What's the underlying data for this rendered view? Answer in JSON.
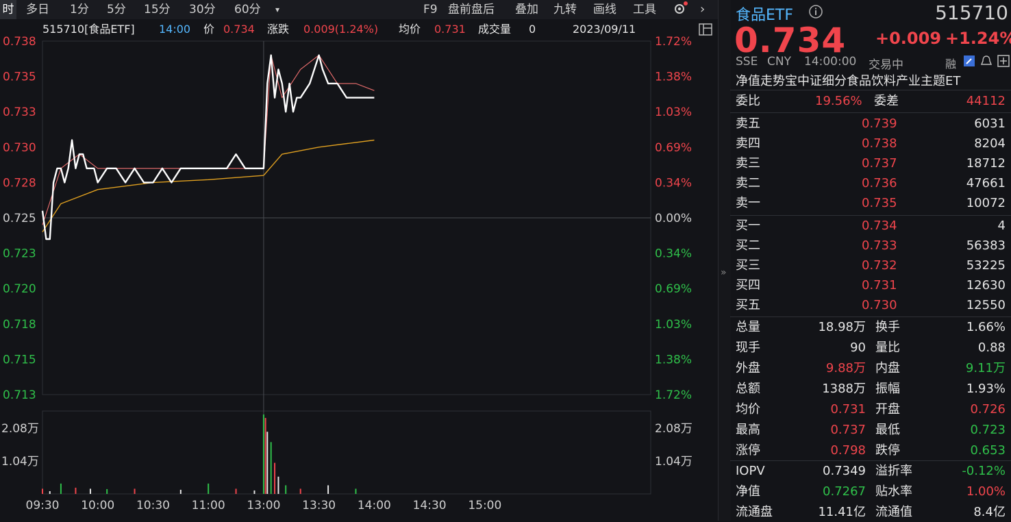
{
  "toolbar": {
    "left_items": [
      "时",
      "多日",
      "1分",
      "5分",
      "15分",
      "30分",
      "60分",
      "▾"
    ],
    "right_items": [
      "F9",
      "盘前盘后",
      "叠加",
      "九转",
      "画线",
      "工具"
    ]
  },
  "info": {
    "code_name": "515710[食品ETF]",
    "time": "14:00",
    "price_label": "价",
    "price": "0.734",
    "change_label": "涨跌",
    "change": "0.009(1.24%)",
    "avg_label": "均价",
    "avg": "0.731",
    "vol_label": "成交量",
    "vol": "0",
    "date": "2023/09/11"
  },
  "chart": {
    "price_ticks_left": [
      "0.738",
      "0.735",
      "0.733",
      "0.730",
      "0.728",
      "0.725",
      "0.723",
      "0.720",
      "0.718",
      "0.715",
      "0.713"
    ],
    "pct_ticks_right": [
      "1.72%",
      "1.38%",
      "1.03%",
      "0.69%",
      "0.34%",
      "0.00%",
      "0.34%",
      "0.69%",
      "1.03%",
      "1.38%",
      "1.72%"
    ],
    "vol_ticks": [
      "2.08万",
      "1.04万"
    ],
    "time_ticks": [
      "09:30",
      "10:00",
      "10:30",
      "11:00",
      "13:00",
      "13:30",
      "14:00",
      "14:30",
      "15:00"
    ],
    "colors": {
      "up": "#f0454c",
      "down": "#2fc04a",
      "price_line": "#ffffff",
      "avg_line": "#e0a020",
      "nav_line": "#f07070"
    }
  },
  "chart_data": {
    "type": "line",
    "title": "",
    "x_range": [
      "09:30",
      "15:00"
    ],
    "ylim": [
      0.713,
      0.738
    ],
    "prev_close": 0.725,
    "series": [
      {
        "x": [
          "09:30",
          "09:32",
          "09:34",
          "09:36",
          "09:38",
          "09:40",
          "09:42",
          "09:44",
          "09:46",
          "09:48",
          "09:50",
          "09:52",
          "09:54",
          "09:56",
          "09:58",
          "10:00",
          "10:05",
          "10:10",
          "10:15",
          "10:20",
          "10:25",
          "10:30",
          "10:35",
          "10:40",
          "10:45",
          "10:50",
          "10:55",
          "11:00",
          "11:05",
          "11:10",
          "11:15",
          "11:20",
          "11:25",
          "11:30",
          "13:00",
          "13:02",
          "13:04",
          "13:06",
          "13:08",
          "13:10",
          "13:12",
          "13:14",
          "13:16",
          "13:18",
          "13:20",
          "13:25",
          "13:30",
          "13:32",
          "13:35",
          "13:40",
          "13:45",
          "13:50",
          "13:55",
          "14:00"
        ],
        "values": [
          0.726,
          0.724,
          0.724,
          0.728,
          0.729,
          0.729,
          0.728,
          0.729,
          0.731,
          0.729,
          0.73,
          0.73,
          0.729,
          0.729,
          0.729,
          0.728,
          0.729,
          0.729,
          0.728,
          0.729,
          0.728,
          0.728,
          0.729,
          0.728,
          0.729,
          0.729,
          0.729,
          0.729,
          0.729,
          0.729,
          0.73,
          0.729,
          0.729,
          0.729,
          0.729,
          0.735,
          0.737,
          0.734,
          0.736,
          0.735,
          0.733,
          0.735,
          0.733,
          0.734,
          0.734,
          0.735,
          0.737,
          0.736,
          0.735,
          0.735,
          0.734,
          0.734,
          0.734,
          0.734
        ]
      },
      {
        "x": [
          "09:30",
          "09:40",
          "10:00",
          "10:30",
          "11:00",
          "11:30",
          "13:00",
          "13:10",
          "13:30",
          "14:00"
        ],
        "values": [
          0.7245,
          0.7265,
          0.7275,
          0.728,
          0.7282,
          0.7285,
          0.7285,
          0.73,
          0.7305,
          0.731
        ]
      },
      {
        "x": [
          "09:30",
          "09:40",
          "09:50",
          "10:00",
          "10:30",
          "11:00",
          "11:30",
          "13:00",
          "13:04",
          "13:10",
          "13:20",
          "13:30",
          "13:40",
          "13:50",
          "14:00"
        ],
        "values": [
          0.725,
          0.729,
          0.73,
          0.729,
          0.729,
          0.729,
          0.729,
          0.729,
          0.737,
          0.734,
          0.736,
          0.737,
          0.735,
          0.735,
          0.7345
        ]
      }
    ],
    "volume": {
      "x": [
        "09:30",
        "09:34",
        "09:40",
        "09:48",
        "09:56",
        "10:05",
        "10:20",
        "10:45",
        "11:00",
        "11:15",
        "11:25",
        "13:00",
        "13:01",
        "13:02",
        "13:04",
        "13:06",
        "13:08",
        "13:12",
        "13:20",
        "13:35",
        "13:50"
      ],
      "values": [
        1500,
        800,
        3000,
        1800,
        1500,
        1400,
        1500,
        1200,
        3000,
        1500,
        1000,
        23000,
        22000,
        18000,
        15000,
        9000,
        5000,
        2500,
        1500,
        2500,
        1500
      ],
      "ylim": [
        0,
        24000
      ]
    }
  },
  "quote": {
    "name": "食品ETF",
    "code": "515710",
    "price": "0.734",
    "change": "+0.009",
    "change_pct": "+1.24%",
    "exchange": "SSE",
    "currency": "CNY",
    "time": "14:00:00",
    "status": "交易中",
    "margin": "融",
    "desc": "净值走势宝中证细分食品饮料产业主题ET",
    "weibi_label": "委比",
    "weibi": "19.56%",
    "weicha_label": "委差",
    "weicha": "44112",
    "asks": [
      {
        "label": "卖五",
        "price": "0.739",
        "vol": "6031"
      },
      {
        "label": "卖四",
        "price": "0.738",
        "vol": "8204"
      },
      {
        "label": "卖三",
        "price": "0.737",
        "vol": "18712"
      },
      {
        "label": "卖二",
        "price": "0.736",
        "vol": "47661"
      },
      {
        "label": "卖一",
        "price": "0.735",
        "vol": "10072"
      }
    ],
    "bids": [
      {
        "label": "买一",
        "price": "0.734",
        "vol": "4"
      },
      {
        "label": "买二",
        "price": "0.733",
        "vol": "56383"
      },
      {
        "label": "买三",
        "price": "0.732",
        "vol": "53225"
      },
      {
        "label": "买四",
        "price": "0.731",
        "vol": "12630"
      },
      {
        "label": "买五",
        "price": "0.730",
        "vol": "12550"
      }
    ],
    "stats": [
      {
        "l1": "总量",
        "v1": "18.98万",
        "c1": "white",
        "l2": "换手",
        "v2": "1.66%",
        "c2": "white"
      },
      {
        "l1": "现手",
        "v1": "90",
        "c1": "white",
        "l2": "量比",
        "v2": "0.88",
        "c2": "white"
      },
      {
        "l1": "外盘",
        "v1": "9.88万",
        "c1": "red",
        "l2": "内盘",
        "v2": "9.11万",
        "c2": "green"
      },
      {
        "l1": "总额",
        "v1": "1388万",
        "c1": "white",
        "l2": "振幅",
        "v2": "1.93%",
        "c2": "white"
      },
      {
        "l1": "均价",
        "v1": "0.731",
        "c1": "red",
        "l2": "开盘",
        "v2": "0.726",
        "c2": "red"
      },
      {
        "l1": "最高",
        "v1": "0.737",
        "c1": "red",
        "l2": "最低",
        "v2": "0.723",
        "c2": "green"
      },
      {
        "l1": "涨停",
        "v1": "0.798",
        "c1": "red",
        "l2": "跌停",
        "v2": "0.653",
        "c2": "green"
      }
    ],
    "stats2": [
      {
        "l1": "IOPV",
        "v1": "0.7349",
        "c1": "white",
        "l2": "溢折率",
        "v2": "-0.12%",
        "c2": "green"
      },
      {
        "l1": "净值",
        "v1": "0.7267",
        "c1": "green",
        "l2": "贴水率",
        "v2": "1.00%",
        "c2": "red"
      },
      {
        "l1": "流通盘",
        "v1": "11.41亿",
        "c1": "white",
        "l2": "流通值",
        "v2": "8.4亿",
        "c2": "white"
      }
    ]
  }
}
